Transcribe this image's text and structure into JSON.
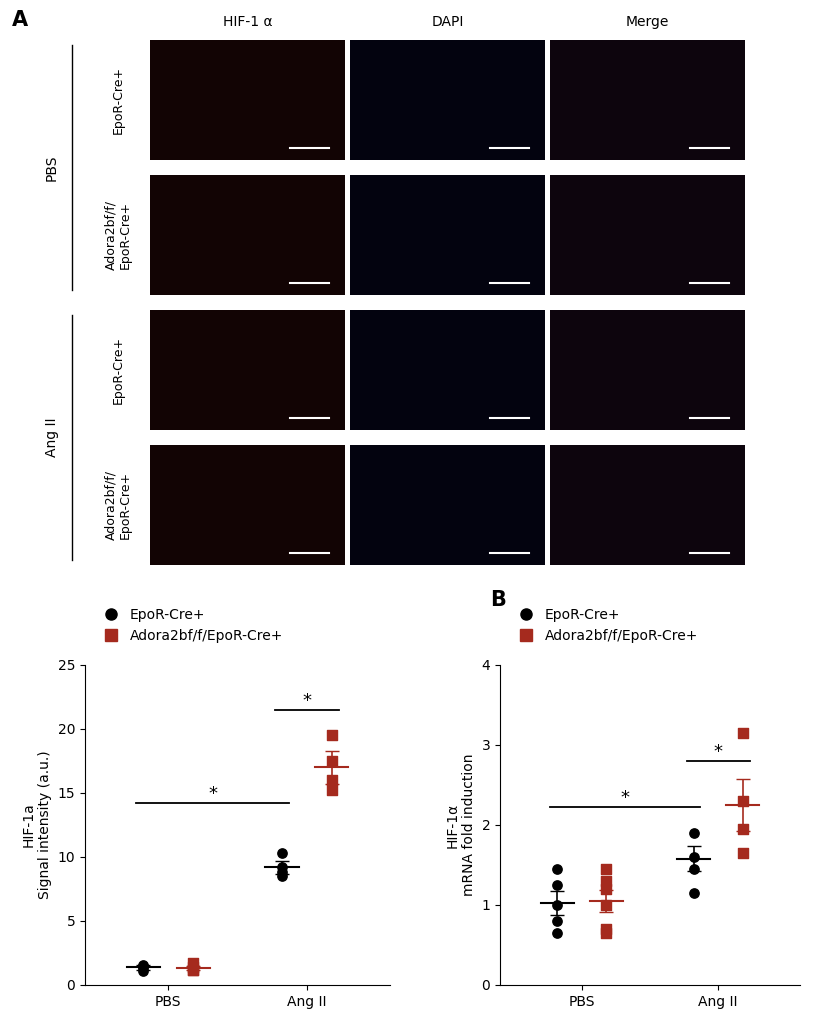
{
  "image_panel": {
    "panel_label": "A",
    "columns": [
      "HIF-1 α",
      "DAPI",
      "Merge"
    ],
    "groups": [
      {
        "label": "PBS",
        "rows": [
          "EpoR-Cre+",
          "Adora2bf/f/\nEpoR-Cre+"
        ]
      },
      {
        "label": "Ang II",
        "rows": [
          "EpoR-Cre+",
          "Adora2bf/f/\nEpoR-Cre+"
        ]
      }
    ]
  },
  "chart_data": [
    {
      "type": "scatter",
      "panel_label": null,
      "y_label": "HIF-1a\nSignal intensity (a.u.)",
      "categories": [
        "PBS",
        "Ang II"
      ],
      "ylim": [
        0,
        25
      ],
      "yticks": [
        0,
        5,
        10,
        15,
        20,
        25
      ],
      "legend": "lower left",
      "series": [
        {
          "name": "EpoR-Cre+",
          "color": "#000000",
          "marker": "o",
          "values": [
            [
              1.3,
              1.1,
              1.5,
              1.6
            ],
            [
              9.2,
              8.5,
              10.3,
              8.8
            ]
          ],
          "mean": [
            1.4,
            9.2
          ],
          "error": [
            0.2,
            0.5
          ]
        },
        {
          "name": "Adora2bf/f/EpoR-Cre+",
          "color": "#a52a1e",
          "marker": "s",
          "values": [
            [
              1.2,
              1.2,
              1.4,
              1.7
            ],
            [
              19.5,
              16.0,
              15.2,
              17.5
            ]
          ],
          "mean": [
            1.3,
            17.0
          ],
          "error": [
            0.15,
            1.3
          ]
        }
      ],
      "significance": [
        {
          "from": [
            0,
            0
          ],
          "to": [
            0,
            1
          ],
          "y": 14.2,
          "label": "*"
        },
        {
          "from": [
            0,
            1
          ],
          "to": [
            1,
            1
          ],
          "y": 21.5,
          "label": "*"
        }
      ]
    },
    {
      "type": "scatter",
      "panel_label": "B",
      "y_label": "HIF-1α\nmRNA fold induction",
      "categories": [
        "PBS",
        "Ang II"
      ],
      "ylim": [
        0,
        4
      ],
      "yticks": [
        0,
        1,
        2,
        3,
        4
      ],
      "legend": "lower left",
      "series": [
        {
          "name": "EpoR-Cre+",
          "color": "#000000",
          "marker": "o",
          "values": [
            [
              0.8,
              1.0,
              1.25,
              1.45,
              0.65
            ],
            [
              1.9,
              1.6,
              1.45,
              1.15
            ]
          ],
          "mean": [
            1.03,
            1.58
          ],
          "error": [
            0.15,
            0.16
          ]
        },
        {
          "name": "Adora2bf/f/EpoR-Cre+",
          "color": "#a52a1e",
          "marker": "s",
          "values": [
            [
              0.65,
              0.7,
              1.0,
              1.3,
              1.45,
              1.2
            ],
            [
              3.15,
              2.3,
              1.95,
              1.65
            ]
          ],
          "mean": [
            1.05,
            2.25
          ],
          "error": [
            0.14,
            0.32
          ]
        }
      ],
      "significance": [
        {
          "from": [
            0,
            0
          ],
          "to": [
            0,
            1
          ],
          "y": 2.22,
          "label": "*"
        },
        {
          "from": [
            0,
            1
          ],
          "to": [
            1,
            1
          ],
          "y": 2.8,
          "label": "*"
        }
      ]
    }
  ]
}
